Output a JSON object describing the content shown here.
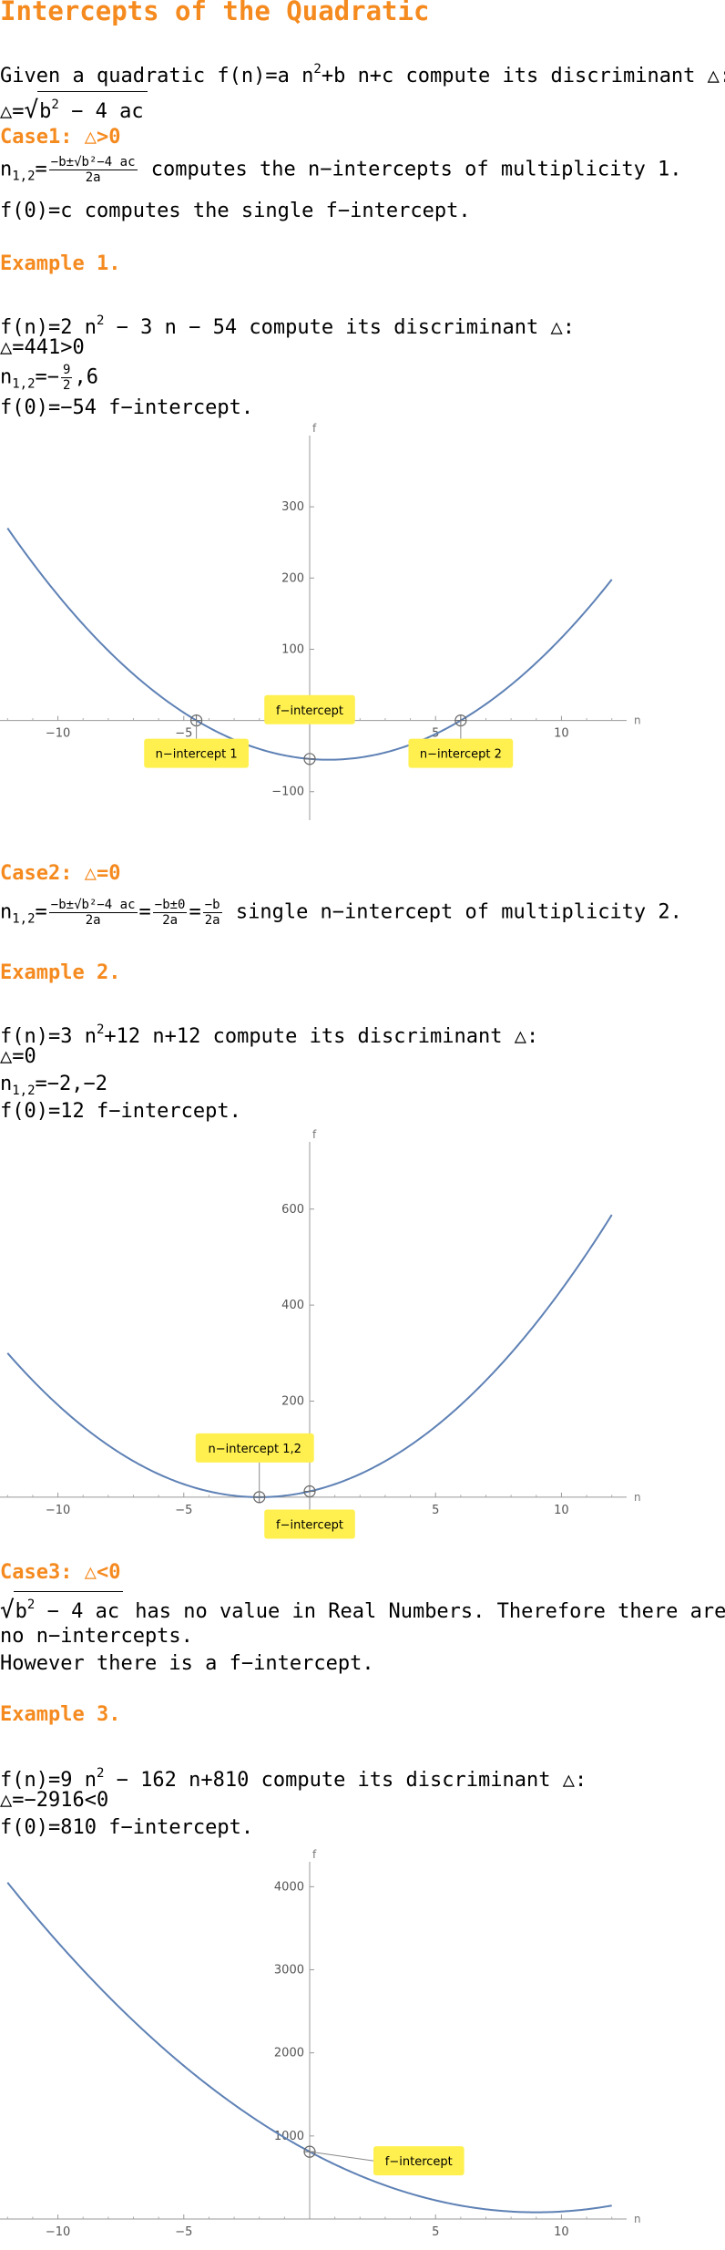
{
  "title": "Intercepts of the Quadratic",
  "intro": {
    "given_prefix": "Given a quadratic ",
    "f_n": "f(n)=a n",
    "sq": "2",
    "rest": "+b n+c compute its discriminant △:",
    "disc_lhs": "△=",
    "disc_rad": "b",
    "disc_rad_sq": "2",
    "disc_rad_rest": " − 4 ac"
  },
  "case1": {
    "heading": "Case1: △>0",
    "n12": "n",
    "n12_sub": "1,2",
    "eq": "=",
    "frac_num": "−b±√b²−4 ac",
    "frac_den": "2a",
    "text": " computes the n−intercepts of multiplicity 1.",
    "f0_line": "f(0)=c computes the single f−intercept."
  },
  "example1": {
    "heading": "Example 1.",
    "fn_a": "f(n)=2 n",
    "fn_sq": "2",
    "fn_b": " − 3 n − 54 compute its discriminant △:",
    "disc": "△=441>0",
    "n12_a": "n",
    "n12_sub": "1,2",
    "n12_eq": "=−",
    "n12_num": "9",
    "n12_den": "2",
    "n12_rest": ",6",
    "f0": "f(0)=−54 f−intercept."
  },
  "case2": {
    "heading": "Case2: △=0",
    "n12": "n",
    "n12_sub": "1,2",
    "f1_num": "−b±√b²−4 ac",
    "f1_den": "2a",
    "f2_num": "−b±0",
    "f2_den": "2a",
    "f3_num": "−b",
    "f3_den": "2a",
    "text": " single n−intercept of multiplicity 2."
  },
  "example2": {
    "heading": "Example 2.",
    "fn_a": "f(n)=3 n",
    "fn_sq": "2",
    "fn_b": "+12 n+12 compute its discriminant △:",
    "disc": "△=0",
    "n12_a": "n",
    "n12_sub": "1,2",
    "n12_rest": "=−2,−2",
    "f0": "f(0)=12 f−intercept."
  },
  "case3": {
    "heading": "Case3: △<0",
    "rad": "b",
    "rad_sq": "2",
    "rad_rest": " − 4 ac",
    "text1": " has no value in Real Numbers. Therefore there are",
    "text2": "no n−intercepts.",
    "text3": "However there is a f−intercept."
  },
  "example3": {
    "heading": "Example 3.",
    "fn_a": "f(n)=9 n",
    "fn_sq": "2",
    "fn_b": " − 162 n+810 compute its discriminant △:",
    "disc": "△=−2916<0",
    "f0": "f(0)=810 f−intercept."
  },
  "chart_data": [
    {
      "type": "line",
      "function": "f(n)=2n^2-3n-54",
      "xlabel": "n",
      "ylabel": "f",
      "xlim": [
        -12.3,
        12.3
      ],
      "ylim": [
        -140,
        400
      ],
      "xticks": [
        -10,
        -5,
        5,
        10
      ],
      "xtick_labels": [
        "−10",
        "−5",
        "5",
        "10"
      ],
      "yticks": [
        -100,
        100,
        200,
        300
      ],
      "ytick_labels": [
        "−100",
        "100",
        "200",
        "300"
      ],
      "series": [
        {
          "x_range": [
            -12,
            12
          ],
          "coefficients": [
            2,
            -3,
            -54
          ]
        }
      ],
      "points": [
        {
          "x": -4.5,
          "y": 0,
          "label": "n−intercept 1",
          "label_side": "below"
        },
        {
          "x": 6,
          "y": 0,
          "label": "n−intercept 2",
          "label_side": "below"
        },
        {
          "x": 0,
          "y": -54,
          "label": "f−intercept",
          "label_side": "above"
        }
      ],
      "colors": {
        "curve": "#5e81b5",
        "callout": "#fff04f"
      }
    },
    {
      "type": "line",
      "function": "f(n)=3n^2+12n+12",
      "xlabel": "n",
      "ylabel": "f",
      "xlim": [
        -12.3,
        12.3
      ],
      "ylim": [
        -80,
        740
      ],
      "xticks": [
        -10,
        -5,
        5,
        10
      ],
      "xtick_labels": [
        "−10",
        "−5",
        "5",
        "10"
      ],
      "yticks": [
        200,
        400,
        600
      ],
      "ytick_labels": [
        "200",
        "400",
        "600"
      ],
      "series": [
        {
          "x_range": [
            -12,
            12
          ],
          "coefficients": [
            3,
            12,
            12
          ]
        }
      ],
      "points": [
        {
          "x": -2,
          "y": 0,
          "label": "n−intercept 1,2",
          "label_side": "above"
        },
        {
          "x": 0,
          "y": 12,
          "label": "f−intercept",
          "label_side": "below"
        }
      ],
      "colors": {
        "curve": "#5e81b5",
        "callout": "#fff04f"
      }
    },
    {
      "type": "line",
      "function": "f(n)=9n^2-162n+810",
      "xlabel": "n",
      "ylabel": "f",
      "xlim": [
        -12.3,
        12.3
      ],
      "ylim": [
        0,
        4300
      ],
      "xticks": [
        -10,
        -5,
        5,
        10
      ],
      "xtick_labels": [
        "−10",
        "−5",
        "5",
        "10"
      ],
      "yticks": [
        1000,
        2000,
        3000,
        4000
      ],
      "ytick_labels": [
        "1000",
        "2000",
        "3000",
        "4000"
      ],
      "series": [
        {
          "x_range": [
            -12,
            12
          ],
          "coefficients": [
            9,
            -162,
            810
          ]
        }
      ],
      "points": [
        {
          "x": 0,
          "y": 810,
          "label": "f−intercept",
          "label_side": "right"
        }
      ],
      "colors": {
        "curve": "#5e81b5",
        "callout": "#fff04f"
      }
    }
  ]
}
